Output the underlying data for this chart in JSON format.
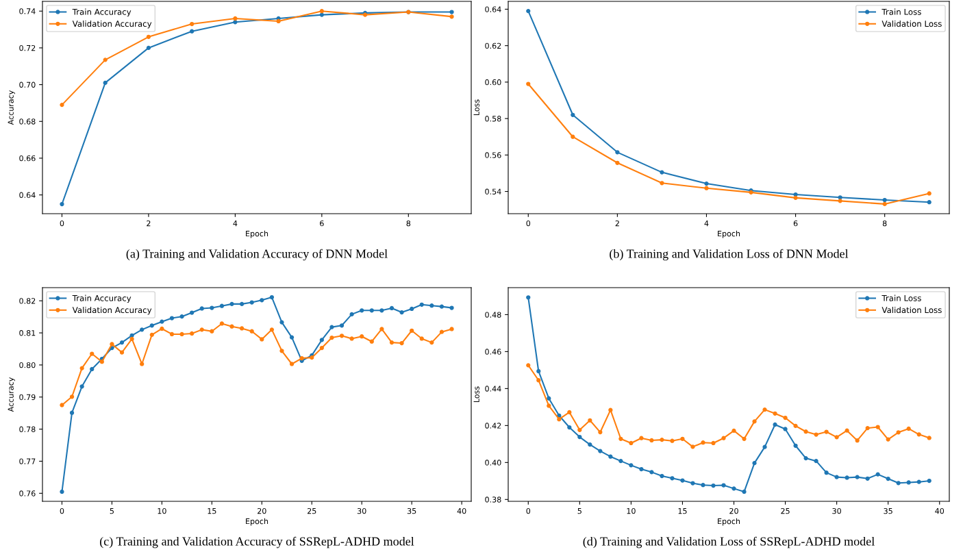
{
  "chart_data": [
    {
      "type": "line",
      "xlabel": "Epoch",
      "ylabel": "Accuracy",
      "annotations": [
        "(a) Training and Validation Accuracy of DNN Model"
      ],
      "x": [
        0,
        1,
        2,
        3,
        4,
        5,
        6,
        7,
        8,
        9
      ],
      "xlim": [
        -0.45,
        9.45
      ],
      "xticks": [
        0,
        2,
        4,
        6,
        8
      ],
      "ylim": [
        0.6298,
        0.7453
      ],
      "yticks": [
        {
          "value": 0.64,
          "label": "0.64"
        },
        {
          "value": 0.66,
          "label": "0.66"
        },
        {
          "value": 0.68,
          "label": "0.68"
        },
        {
          "value": 0.7,
          "label": "0.70"
        },
        {
          "value": 0.72,
          "label": "0.72"
        },
        {
          "value": 0.74,
          "label": "0.74"
        }
      ],
      "marker": "circle",
      "line_style": "solid",
      "legend": "top left",
      "grid": false,
      "series": [
        {
          "name": "Train Accuracy",
          "color": "#1f77b4",
          "values": [
            0.635,
            0.701,
            0.72,
            0.729,
            0.734,
            0.736,
            0.738,
            0.739,
            0.7395,
            0.7395
          ]
        },
        {
          "name": "Validation Accuracy",
          "color": "#ff7f0e",
          "values": [
            0.689,
            0.7135,
            0.726,
            0.733,
            0.736,
            0.7345,
            0.74,
            0.738,
            0.7395,
            0.737
          ]
        }
      ]
    },
    {
      "type": "line",
      "xlabel": "Epoch",
      "ylabel": "Loss",
      "annotations": [
        "(b) Training and Validation Loss of DNN Model"
      ],
      "x": [
        0,
        1,
        2,
        3,
        4,
        5,
        6,
        7,
        8,
        9
      ],
      "xlim": [
        -0.45,
        9.45
      ],
      "xticks": [
        0,
        2,
        4,
        6,
        8
      ],
      "ylim": [
        0.5278,
        0.6443
      ],
      "yticks": [
        {
          "value": 0.54,
          "label": "0.54"
        },
        {
          "value": 0.56,
          "label": "0.56"
        },
        {
          "value": 0.58,
          "label": "0.58"
        },
        {
          "value": 0.6,
          "label": "0.60"
        },
        {
          "value": 0.62,
          "label": "0.62"
        },
        {
          "value": 0.64,
          "label": "0.64"
        }
      ],
      "marker": "circle",
      "line_style": "solid",
      "legend": "top right",
      "grid": false,
      "series": [
        {
          "name": "Train Loss",
          "color": "#1f77b4",
          "values": [
            0.639,
            0.582,
            0.5615,
            0.5505,
            0.5443,
            0.5405,
            0.5383,
            0.5367,
            0.5353,
            0.5341
          ]
        },
        {
          "name": "Validation Loss",
          "color": "#ff7f0e",
          "values": [
            0.599,
            0.57,
            0.5557,
            0.5446,
            0.5418,
            0.5395,
            0.5365,
            0.5348,
            0.5331,
            0.5389
          ]
        }
      ]
    },
    {
      "type": "line",
      "xlabel": "Epoch",
      "ylabel": "Accuracy",
      "annotations": [
        "(c) Training and Validation Accuracy of SSRepL-ADHD model"
      ],
      "x": [
        0,
        1,
        2,
        3,
        4,
        5,
        6,
        7,
        8,
        9,
        10,
        11,
        12,
        13,
        14,
        15,
        16,
        17,
        18,
        19,
        20,
        21,
        22,
        23,
        24,
        25,
        26,
        27,
        28,
        29,
        30,
        31,
        32,
        33,
        34,
        35,
        36,
        37,
        38,
        39
      ],
      "xlim": [
        -1.95,
        40.95
      ],
      "xticks": [
        0,
        5,
        10,
        15,
        20,
        25,
        30,
        35,
        40
      ],
      "ylim": [
        0.7575,
        0.8241
      ],
      "yticks": [
        {
          "value": 0.76,
          "label": "0.76"
        },
        {
          "value": 0.77,
          "label": "0.77"
        },
        {
          "value": 0.78,
          "label": "0.78"
        },
        {
          "value": 0.79,
          "label": "0.79"
        },
        {
          "value": 0.8,
          "label": "0.80"
        },
        {
          "value": 0.81,
          "label": "0.81"
        },
        {
          "value": 0.82,
          "label": "0.82"
        }
      ],
      "marker": "circle",
      "line_style": "solid",
      "legend": "top left",
      "grid": false,
      "series": [
        {
          "name": "Train Accuracy",
          "color": "#1f77b4",
          "values": [
            0.7605,
            0.7851,
            0.7933,
            0.7987,
            0.8019,
            0.8053,
            0.807,
            0.8092,
            0.811,
            0.8123,
            0.8135,
            0.8146,
            0.8151,
            0.8163,
            0.8176,
            0.8178,
            0.8184,
            0.819,
            0.819,
            0.8195,
            0.8202,
            0.8211,
            0.8133,
            0.8086,
            0.8013,
            0.803,
            0.8078,
            0.8118,
            0.8123,
            0.8158,
            0.817,
            0.817,
            0.817,
            0.8177,
            0.8164,
            0.8175,
            0.8188,
            0.8185,
            0.8182,
            0.8178
          ]
        },
        {
          "name": "Validation Accuracy",
          "color": "#ff7f0e",
          "values": [
            0.7875,
            0.7901,
            0.799,
            0.8035,
            0.801,
            0.8065,
            0.8039,
            0.8081,
            0.8003,
            0.8094,
            0.8113,
            0.8096,
            0.8096,
            0.8098,
            0.811,
            0.8105,
            0.8129,
            0.812,
            0.8114,
            0.8105,
            0.808,
            0.811,
            0.8044,
            0.8003,
            0.8021,
            0.8023,
            0.8053,
            0.8085,
            0.8091,
            0.8082,
            0.8089,
            0.8073,
            0.8112,
            0.807,
            0.8068,
            0.8107,
            0.8082,
            0.807,
            0.8103,
            0.8112
          ]
        }
      ]
    },
    {
      "type": "line",
      "xlabel": "Epoch",
      "ylabel": "Loss",
      "annotations": [
        "(d) Training and Validation Loss of SSRepL-ADHD model"
      ],
      "x": [
        0,
        1,
        2,
        3,
        4,
        5,
        6,
        7,
        8,
        9,
        10,
        11,
        12,
        13,
        14,
        15,
        16,
        17,
        18,
        19,
        20,
        21,
        22,
        23,
        24,
        25,
        26,
        27,
        28,
        29,
        30,
        31,
        32,
        33,
        34,
        35,
        36,
        37,
        38,
        39
      ],
      "xlim": [
        -1.95,
        40.95
      ],
      "xticks": [
        0,
        5,
        10,
        15,
        20,
        25,
        30,
        35,
        40
      ],
      "ylim": [
        0.379,
        0.4946
      ],
      "yticks": [
        {
          "value": 0.38,
          "label": "0.38"
        },
        {
          "value": 0.4,
          "label": "0.40"
        },
        {
          "value": 0.42,
          "label": "0.42"
        },
        {
          "value": 0.44,
          "label": "0.44"
        },
        {
          "value": 0.46,
          "label": "0.46"
        },
        {
          "value": 0.48,
          "label": "0.48"
        }
      ],
      "marker": "circle",
      "line_style": "solid",
      "legend": "top right",
      "grid": false,
      "series": [
        {
          "name": "Train Loss",
          "color": "#1f77b4",
          "values": [
            0.4893,
            0.4494,
            0.4347,
            0.4254,
            0.419,
            0.4138,
            0.4097,
            0.4062,
            0.4032,
            0.4008,
            0.3985,
            0.3964,
            0.3948,
            0.3927,
            0.3915,
            0.3903,
            0.3888,
            0.3878,
            0.3875,
            0.3877,
            0.3859,
            0.3842,
            0.3997,
            0.4084,
            0.4205,
            0.4181,
            0.4091,
            0.4023,
            0.4008,
            0.3945,
            0.3921,
            0.3918,
            0.3921,
            0.3913,
            0.3936,
            0.3912,
            0.3889,
            0.3892,
            0.3895,
            0.3901
          ]
        },
        {
          "name": "Validation Loss",
          "color": "#ff7f0e",
          "values": [
            0.4526,
            0.4445,
            0.4307,
            0.4234,
            0.4272,
            0.4176,
            0.4228,
            0.4164,
            0.4284,
            0.4128,
            0.4105,
            0.4132,
            0.412,
            0.4123,
            0.4117,
            0.4128,
            0.4085,
            0.4108,
            0.4105,
            0.4132,
            0.4172,
            0.4128,
            0.4222,
            0.4286,
            0.4265,
            0.4242,
            0.4198,
            0.4167,
            0.4151,
            0.4166,
            0.4137,
            0.4173,
            0.4119,
            0.4186,
            0.4192,
            0.4125,
            0.4163,
            0.4183,
            0.4152,
            0.4133
          ]
        }
      ]
    }
  ]
}
